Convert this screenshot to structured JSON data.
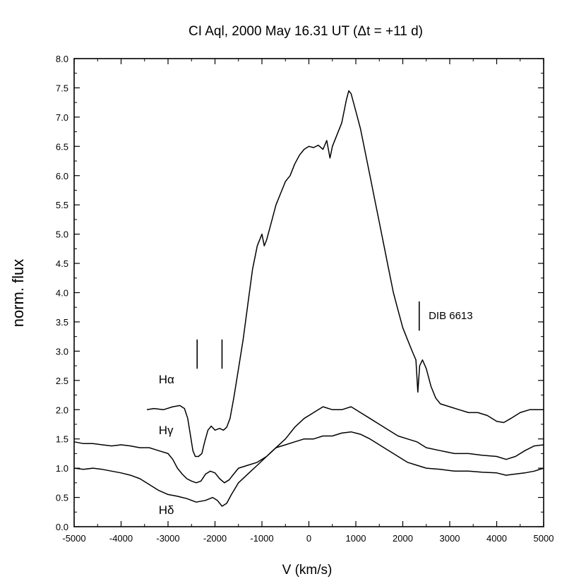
{
  "chart_data": {
    "type": "line",
    "title": "CI Aql, 2000 May 16.31 UT (Δt = +11 d)",
    "xlabel": "V (km/s)",
    "ylabel": "norm. flux",
    "xlim": [
      -5000,
      5000
    ],
    "ylim": [
      0.0,
      8.0
    ],
    "grid": false,
    "x_ticks": [
      -5000,
      -4000,
      -3000,
      -2000,
      -1000,
      0,
      1000,
      2000,
      3000,
      4000,
      5000
    ],
    "x_tick_labels": [
      "-5000",
      "-4000",
      "-3000",
      "-2000",
      "-1000",
      "0",
      "1000",
      "2000",
      "3000",
      "4000",
      "5000"
    ],
    "y_ticks": [
      0.0,
      0.5,
      1.0,
      1.5,
      2.0,
      2.5,
      3.0,
      3.5,
      4.0,
      4.5,
      5.0,
      5.5,
      6.0,
      6.5,
      7.0,
      7.5,
      8.0
    ],
    "y_tick_labels": [
      "0.0",
      "0.5",
      "1.0",
      "1.5",
      "2.0",
      "2.5",
      "3.0",
      "3.5",
      "4.0",
      "4.5",
      "5.0",
      "5.5",
      "6.0",
      "6.5",
      "7.0",
      "7.5",
      "8.0"
    ],
    "series": [
      {
        "name": "Hα",
        "label_position": {
          "x": -3200,
          "y": 2.45
        },
        "points": [
          [
            -3450,
            2.0
          ],
          [
            -3300,
            2.02
          ],
          [
            -3100,
            2.0
          ],
          [
            -2900,
            2.05
          ],
          [
            -2750,
            2.07
          ],
          [
            -2650,
            2.02
          ],
          [
            -2580,
            1.85
          ],
          [
            -2520,
            1.55
          ],
          [
            -2470,
            1.3
          ],
          [
            -2420,
            1.2
          ],
          [
            -2350,
            1.2
          ],
          [
            -2280,
            1.25
          ],
          [
            -2220,
            1.45
          ],
          [
            -2150,
            1.65
          ],
          [
            -2080,
            1.72
          ],
          [
            -2000,
            1.65
          ],
          [
            -1900,
            1.68
          ],
          [
            -1820,
            1.65
          ],
          [
            -1750,
            1.7
          ],
          [
            -1680,
            1.85
          ],
          [
            -1600,
            2.2
          ],
          [
            -1500,
            2.7
          ],
          [
            -1400,
            3.2
          ],
          [
            -1300,
            3.8
          ],
          [
            -1200,
            4.4
          ],
          [
            -1100,
            4.8
          ],
          [
            -1000,
            5.0
          ],
          [
            -950,
            4.8
          ],
          [
            -900,
            4.9
          ],
          [
            -800,
            5.2
          ],
          [
            -700,
            5.5
          ],
          [
            -600,
            5.7
          ],
          [
            -500,
            5.9
          ],
          [
            -400,
            6.0
          ],
          [
            -300,
            6.2
          ],
          [
            -200,
            6.35
          ],
          [
            -100,
            6.45
          ],
          [
            0,
            6.5
          ],
          [
            100,
            6.48
          ],
          [
            200,
            6.52
          ],
          [
            300,
            6.45
          ],
          [
            380,
            6.6
          ],
          [
            450,
            6.3
          ],
          [
            500,
            6.5
          ],
          [
            600,
            6.7
          ],
          [
            700,
            6.9
          ],
          [
            800,
            7.3
          ],
          [
            850,
            7.45
          ],
          [
            900,
            7.4
          ],
          [
            1000,
            7.1
          ],
          [
            1100,
            6.8
          ],
          [
            1200,
            6.4
          ],
          [
            1300,
            6.0
          ],
          [
            1400,
            5.6
          ],
          [
            1500,
            5.2
          ],
          [
            1600,
            4.8
          ],
          [
            1700,
            4.4
          ],
          [
            1800,
            4.0
          ],
          [
            1900,
            3.7
          ],
          [
            2000,
            3.4
          ],
          [
            2100,
            3.2
          ],
          [
            2200,
            3.0
          ],
          [
            2280,
            2.85
          ],
          [
            2320,
            2.3
          ],
          [
            2360,
            2.75
          ],
          [
            2420,
            2.85
          ],
          [
            2500,
            2.7
          ],
          [
            2600,
            2.4
          ],
          [
            2700,
            2.2
          ],
          [
            2800,
            2.1
          ],
          [
            3000,
            2.05
          ],
          [
            3200,
            2.0
          ],
          [
            3400,
            1.95
          ],
          [
            3600,
            1.95
          ],
          [
            3800,
            1.9
          ],
          [
            4000,
            1.8
          ],
          [
            4150,
            1.78
          ],
          [
            4300,
            1.85
          ],
          [
            4500,
            1.95
          ],
          [
            4700,
            2.0
          ],
          [
            4900,
            2.0
          ],
          [
            5000,
            2.0
          ]
        ]
      },
      {
        "name": "Hγ",
        "label_position": {
          "x": -3200,
          "y": 1.58
        },
        "points": [
          [
            -5000,
            1.45
          ],
          [
            -4800,
            1.42
          ],
          [
            -4600,
            1.42
          ],
          [
            -4400,
            1.4
          ],
          [
            -4200,
            1.38
          ],
          [
            -4000,
            1.4
          ],
          [
            -3800,
            1.38
          ],
          [
            -3600,
            1.35
          ],
          [
            -3400,
            1.35
          ],
          [
            -3200,
            1.3
          ],
          [
            -3000,
            1.25
          ],
          [
            -2900,
            1.15
          ],
          [
            -2800,
            1.0
          ],
          [
            -2700,
            0.9
          ],
          [
            -2600,
            0.82
          ],
          [
            -2500,
            0.78
          ],
          [
            -2400,
            0.75
          ],
          [
            -2300,
            0.78
          ],
          [
            -2200,
            0.9
          ],
          [
            -2100,
            0.95
          ],
          [
            -2000,
            0.92
          ],
          [
            -1900,
            0.82
          ],
          [
            -1800,
            0.75
          ],
          [
            -1700,
            0.8
          ],
          [
            -1600,
            0.9
          ],
          [
            -1500,
            1.0
          ],
          [
            -1300,
            1.05
          ],
          [
            -1100,
            1.1
          ],
          [
            -900,
            1.2
          ],
          [
            -700,
            1.35
          ],
          [
            -500,
            1.5
          ],
          [
            -300,
            1.7
          ],
          [
            -100,
            1.85
          ],
          [
            100,
            1.95
          ],
          [
            300,
            2.05
          ],
          [
            500,
            2.0
          ],
          [
            700,
            2.0
          ],
          [
            900,
            2.05
          ],
          [
            1100,
            1.95
          ],
          [
            1300,
            1.85
          ],
          [
            1500,
            1.75
          ],
          [
            1700,
            1.65
          ],
          [
            1900,
            1.55
          ],
          [
            2100,
            1.5
          ],
          [
            2300,
            1.45
          ],
          [
            2500,
            1.35
          ],
          [
            2800,
            1.3
          ],
          [
            3100,
            1.25
          ],
          [
            3400,
            1.25
          ],
          [
            3700,
            1.22
          ],
          [
            4000,
            1.2
          ],
          [
            4200,
            1.15
          ],
          [
            4400,
            1.2
          ],
          [
            4600,
            1.3
          ],
          [
            4800,
            1.38
          ],
          [
            5000,
            1.4
          ]
        ]
      },
      {
        "name": "Hδ",
        "label_position": {
          "x": -3200,
          "y": 0.22
        },
        "points": [
          [
            -5000,
            1.0
          ],
          [
            -4800,
            0.98
          ],
          [
            -4600,
            1.0
          ],
          [
            -4400,
            0.98
          ],
          [
            -4200,
            0.95
          ],
          [
            -4000,
            0.92
          ],
          [
            -3800,
            0.88
          ],
          [
            -3600,
            0.82
          ],
          [
            -3400,
            0.72
          ],
          [
            -3200,
            0.62
          ],
          [
            -3000,
            0.55
          ],
          [
            -2800,
            0.52
          ],
          [
            -2600,
            0.48
          ],
          [
            -2400,
            0.42
          ],
          [
            -2200,
            0.45
          ],
          [
            -2050,
            0.5
          ],
          [
            -1950,
            0.45
          ],
          [
            -1850,
            0.35
          ],
          [
            -1750,
            0.4
          ],
          [
            -1650,
            0.55
          ],
          [
            -1500,
            0.75
          ],
          [
            -1300,
            0.9
          ],
          [
            -1100,
            1.05
          ],
          [
            -900,
            1.2
          ],
          [
            -700,
            1.35
          ],
          [
            -500,
            1.4
          ],
          [
            -300,
            1.45
          ],
          [
            -100,
            1.5
          ],
          [
            100,
            1.5
          ],
          [
            300,
            1.55
          ],
          [
            500,
            1.55
          ],
          [
            700,
            1.6
          ],
          [
            900,
            1.62
          ],
          [
            1100,
            1.58
          ],
          [
            1300,
            1.5
          ],
          [
            1500,
            1.4
          ],
          [
            1700,
            1.3
          ],
          [
            1900,
            1.2
          ],
          [
            2100,
            1.1
          ],
          [
            2300,
            1.05
          ],
          [
            2500,
            1.0
          ],
          [
            2800,
            0.98
          ],
          [
            3100,
            0.95
          ],
          [
            3400,
            0.95
          ],
          [
            3700,
            0.93
          ],
          [
            4000,
            0.92
          ],
          [
            4200,
            0.88
          ],
          [
            4400,
            0.9
          ],
          [
            4600,
            0.92
          ],
          [
            4800,
            0.95
          ],
          [
            5000,
            1.0
          ]
        ]
      }
    ],
    "annotations": [
      {
        "type": "tick_mark",
        "x": -2380,
        "y_from": 2.7,
        "y_to": 3.2,
        "text": ""
      },
      {
        "type": "tick_mark",
        "x": -1850,
        "y_from": 2.7,
        "y_to": 3.2,
        "text": ""
      },
      {
        "type": "tick_mark",
        "x": 2350,
        "y_from": 3.35,
        "y_to": 3.85,
        "text": "DIB 6613",
        "text_x": 2550,
        "text_y": 3.55
      }
    ]
  }
}
